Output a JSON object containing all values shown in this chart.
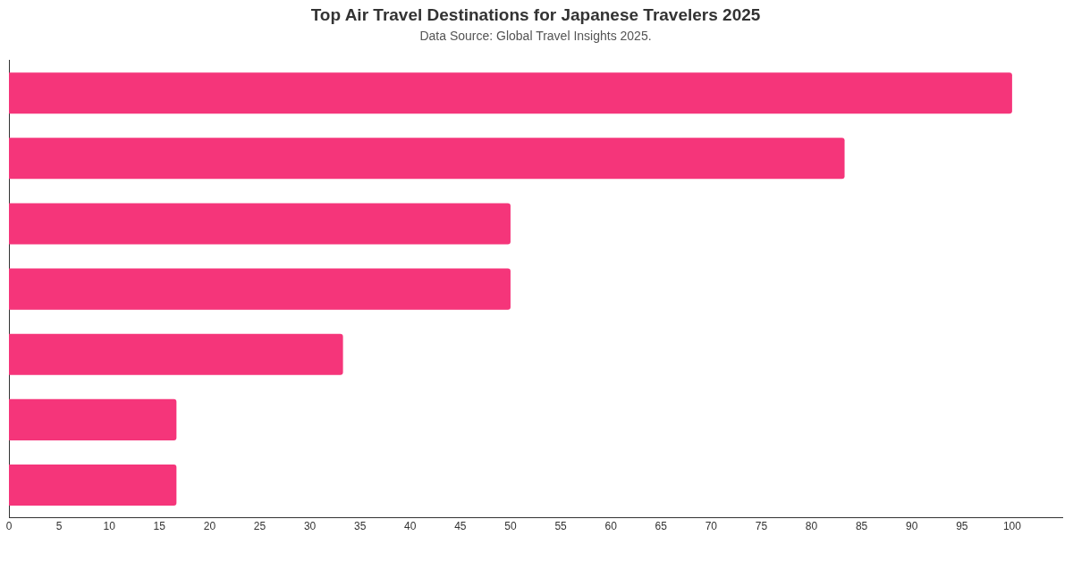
{
  "chart_data": {
    "type": "bar",
    "orientation": "horizontal",
    "title": "Top Air Travel Destinations for Japanese Travelers 2025",
    "subtitle": "Data Source: Global Travel Insights 2025.",
    "categories": [
      null,
      null,
      null,
      null,
      null,
      null,
      null
    ],
    "values": [
      100,
      83.3,
      50,
      50,
      33.3,
      16.7,
      16.7
    ],
    "color": "#f5357a",
    "xlim": [
      0,
      105
    ],
    "xticks": [
      0,
      5,
      10,
      15,
      20,
      25,
      30,
      35,
      40,
      45,
      50,
      55,
      60,
      65,
      70,
      75,
      80,
      85,
      90,
      95,
      100
    ],
    "grid": false,
    "legend": false,
    "tick_labels": "x"
  }
}
